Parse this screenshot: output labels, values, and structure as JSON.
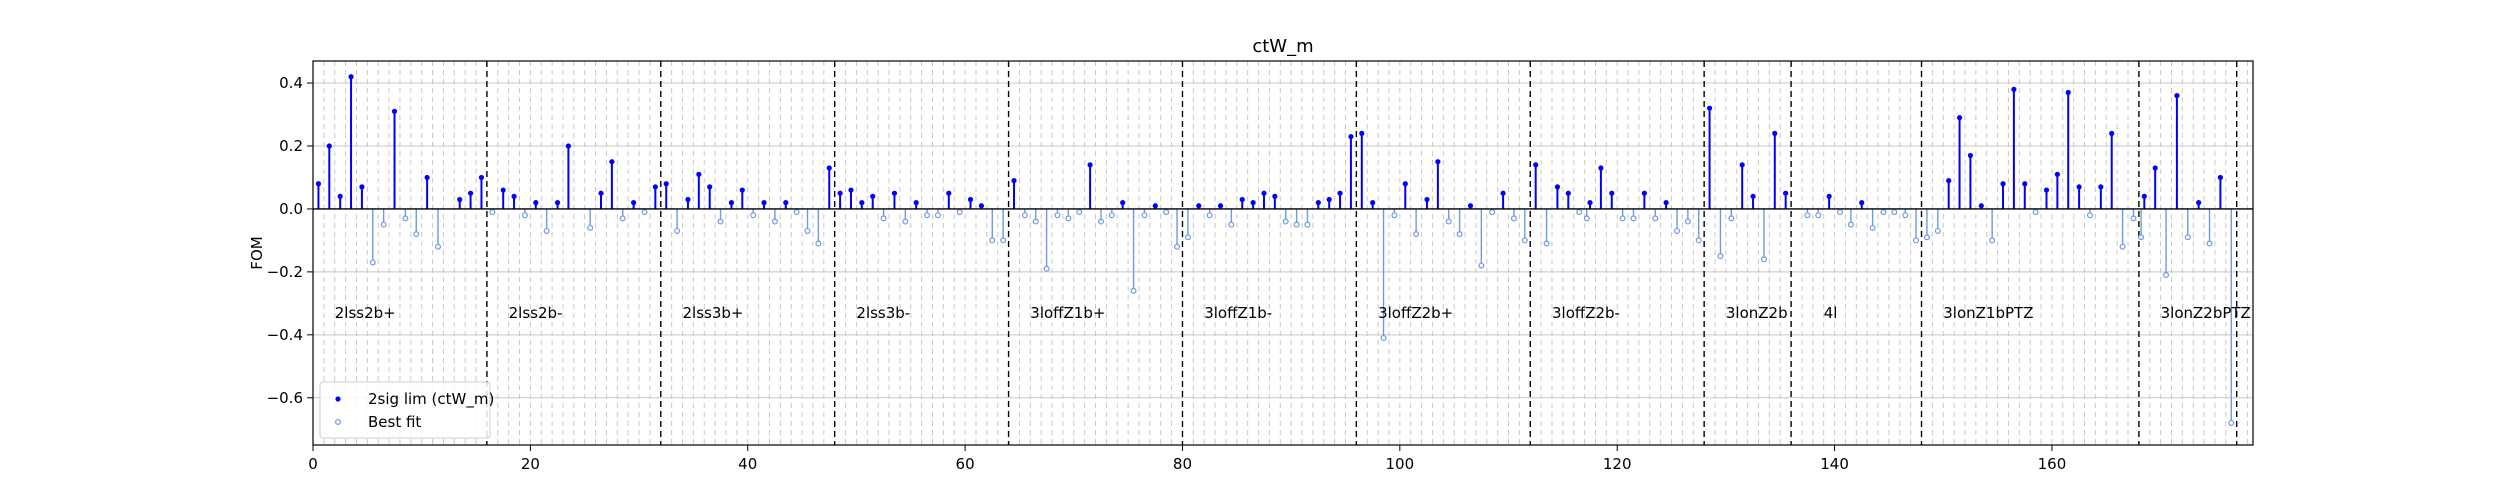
{
  "chart_data": {
    "type": "stem",
    "title": "ctW_m",
    "xlabel": "",
    "ylabel": "FOM",
    "xlim": [
      0,
      178.5
    ],
    "ylim": [
      -0.75,
      0.47
    ],
    "xticks": [
      0,
      20,
      40,
      60,
      80,
      100,
      120,
      140,
      160
    ],
    "yticks": [
      -0.6,
      -0.4,
      -0.2,
      0.0,
      0.2,
      0.4
    ],
    "ytick_labels": [
      "−0.6",
      "−0.4",
      "−0.2",
      "0.0",
      "0.2",
      "0.4"
    ],
    "grid": true,
    "legend_position": "lower-left",
    "colors": {
      "lim": "#0000ff",
      "best": "#6b9be0",
      "dashed": "#000000",
      "grid": "#c8c8c8"
    },
    "region_boundaries": [
      16,
      32,
      48,
      64,
      80,
      96,
      112,
      128,
      136,
      148,
      168,
      177
    ],
    "regions": [
      {
        "label": "2lss2b+",
        "x": 2
      },
      {
        "label": "2lss2b-",
        "x": 18
      },
      {
        "label": "2lss3b+",
        "x": 34
      },
      {
        "label": "2lss3b-",
        "x": 50
      },
      {
        "label": "3loffZ1b+",
        "x": 66
      },
      {
        "label": "3loffZ1b-",
        "x": 82
      },
      {
        "label": "3loffZ2b+",
        "x": 98
      },
      {
        "label": "3loffZ2b-",
        "x": 114
      },
      {
        "label": "3lonZ2b",
        "x": 130
      },
      {
        "label": "4l",
        "x": 139
      },
      {
        "label": "3lonZ1bPTZ",
        "x": 150
      },
      {
        "label": "3lonZ2bPTZ",
        "x": 170
      }
    ],
    "region_label_y": -0.33,
    "series": [
      {
        "name": "2sig lim (ctW_m)",
        "marker": "dot",
        "points": [
          [
            0.5,
            0.08
          ],
          [
            1.5,
            0.2
          ],
          [
            2.5,
            0.04
          ],
          [
            3.5,
            0.42
          ],
          [
            4.5,
            0.07
          ],
          [
            7.5,
            0.31
          ],
          [
            10.5,
            0.1
          ],
          [
            13.5,
            0.03
          ],
          [
            14.5,
            0.05
          ],
          [
            15.5,
            0.1
          ],
          [
            17.5,
            0.06
          ],
          [
            18.5,
            0.04
          ],
          [
            20.5,
            0.02
          ],
          [
            22.5,
            0.02
          ],
          [
            23.5,
            0.2
          ],
          [
            26.5,
            0.05
          ],
          [
            27.5,
            0.15
          ],
          [
            29.5,
            0.02
          ],
          [
            31.5,
            0.07
          ],
          [
            32.5,
            0.08
          ],
          [
            34.5,
            0.03
          ],
          [
            35.5,
            0.11
          ],
          [
            36.5,
            0.07
          ],
          [
            38.5,
            0.02
          ],
          [
            39.5,
            0.06
          ],
          [
            41.5,
            0.02
          ],
          [
            43.5,
            0.02
          ],
          [
            47.5,
            0.13
          ],
          [
            48.5,
            0.05
          ],
          [
            49.5,
            0.06
          ],
          [
            50.5,
            0.02
          ],
          [
            51.5,
            0.04
          ],
          [
            53.5,
            0.05
          ],
          [
            55.5,
            0.02
          ],
          [
            58.5,
            0.05
          ],
          [
            60.5,
            0.03
          ],
          [
            61.5,
            0.01
          ],
          [
            64.5,
            0.09
          ],
          [
            71.5,
            0.14
          ],
          [
            74.5,
            0.02
          ],
          [
            77.5,
            0.01
          ],
          [
            81.5,
            0.01
          ],
          [
            83.5,
            0.01
          ],
          [
            85.5,
            0.03
          ],
          [
            86.5,
            0.02
          ],
          [
            87.5,
            0.05
          ],
          [
            88.5,
            0.04
          ],
          [
            92.5,
            0.02
          ],
          [
            93.5,
            0.03
          ],
          [
            94.5,
            0.05
          ],
          [
            95.5,
            0.23
          ],
          [
            96.5,
            0.24
          ],
          [
            97.5,
            0.02
          ],
          [
            100.5,
            0.08
          ],
          [
            102.5,
            0.03
          ],
          [
            103.5,
            0.15
          ],
          [
            106.5,
            0.01
          ],
          [
            109.5,
            0.05
          ],
          [
            112.5,
            0.14
          ],
          [
            114.5,
            0.07
          ],
          [
            115.5,
            0.05
          ],
          [
            117.5,
            0.02
          ],
          [
            118.5,
            0.13
          ],
          [
            119.5,
            0.05
          ],
          [
            122.5,
            0.05
          ],
          [
            124.5,
            0.02
          ],
          [
            128.5,
            0.32
          ],
          [
            131.5,
            0.14
          ],
          [
            132.5,
            0.04
          ],
          [
            134.5,
            0.24
          ],
          [
            135.5,
            0.05
          ],
          [
            139.5,
            0.04
          ],
          [
            142.5,
            0.02
          ],
          [
            150.5,
            0.09
          ],
          [
            151.5,
            0.29
          ],
          [
            152.5,
            0.17
          ],
          [
            153.5,
            0.01
          ],
          [
            155.5,
            0.08
          ],
          [
            156.5,
            0.38
          ],
          [
            157.5,
            0.08
          ],
          [
            159.5,
            0.06
          ],
          [
            160.5,
            0.11
          ],
          [
            161.5,
            0.37
          ],
          [
            162.5,
            0.07
          ],
          [
            164.5,
            0.07
          ],
          [
            165.5,
            0.24
          ],
          [
            168.5,
            0.04
          ],
          [
            169.5,
            0.13
          ],
          [
            171.5,
            0.36
          ],
          [
            173.5,
            0.02
          ],
          [
            175.5,
            0.1
          ]
        ]
      },
      {
        "name": "Best fit",
        "marker": "circle",
        "points": [
          [
            5.5,
            -0.17
          ],
          [
            6.5,
            -0.05
          ],
          [
            8.5,
            -0.03
          ],
          [
            9.5,
            -0.08
          ],
          [
            11.5,
            -0.12
          ],
          [
            16.5,
            -0.01
          ],
          [
            19.5,
            -0.02
          ],
          [
            21.5,
            -0.07
          ],
          [
            25.5,
            -0.06
          ],
          [
            28.5,
            -0.03
          ],
          [
            30.5,
            -0.01
          ],
          [
            33.5,
            -0.07
          ],
          [
            37.5,
            -0.04
          ],
          [
            40.5,
            -0.02
          ],
          [
            42.5,
            -0.04
          ],
          [
            44.5,
            -0.01
          ],
          [
            45.5,
            -0.07
          ],
          [
            46.5,
            -0.11
          ],
          [
            52.5,
            -0.03
          ],
          [
            54.5,
            -0.04
          ],
          [
            56.5,
            -0.02
          ],
          [
            57.5,
            -0.02
          ],
          [
            59.5,
            -0.01
          ],
          [
            62.5,
            -0.1
          ],
          [
            63.5,
            -0.1
          ],
          [
            65.5,
            -0.02
          ],
          [
            66.5,
            -0.04
          ],
          [
            67.5,
            -0.19
          ],
          [
            68.5,
            -0.02
          ],
          [
            69.5,
            -0.03
          ],
          [
            70.5,
            -0.01
          ],
          [
            72.5,
            -0.04
          ],
          [
            73.5,
            -0.02
          ],
          [
            75.5,
            -0.26
          ],
          [
            76.5,
            -0.02
          ],
          [
            78.5,
            -0.01
          ],
          [
            79.5,
            -0.12
          ],
          [
            80.5,
            -0.09
          ],
          [
            82.5,
            -0.02
          ],
          [
            84.5,
            -0.05
          ],
          [
            89.5,
            -0.04
          ],
          [
            90.5,
            -0.05
          ],
          [
            91.5,
            -0.05
          ],
          [
            98.5,
            -0.41
          ],
          [
            99.5,
            -0.02
          ],
          [
            101.5,
            -0.08
          ],
          [
            104.5,
            -0.04
          ],
          [
            105.5,
            -0.08
          ],
          [
            107.5,
            -0.18
          ],
          [
            108.5,
            -0.01
          ],
          [
            110.5,
            -0.03
          ],
          [
            111.5,
            -0.1
          ],
          [
            113.5,
            -0.11
          ],
          [
            116.5,
            -0.01
          ],
          [
            117.2,
            -0.03
          ],
          [
            120.5,
            -0.03
          ],
          [
            121.5,
            -0.03
          ],
          [
            123.5,
            -0.03
          ],
          [
            125.5,
            -0.07
          ],
          [
            126.5,
            -0.04
          ],
          [
            127.5,
            -0.1
          ],
          [
            129.5,
            -0.15
          ],
          [
            130.5,
            -0.03
          ],
          [
            133.5,
            -0.16
          ],
          [
            137.5,
            -0.02
          ],
          [
            138.5,
            -0.02
          ],
          [
            140.5,
            -0.01
          ],
          [
            141.5,
            -0.05
          ],
          [
            143.5,
            -0.06
          ],
          [
            144.5,
            -0.01
          ],
          [
            145.5,
            -0.01
          ],
          [
            146.5,
            -0.02
          ],
          [
            147.5,
            -0.1
          ],
          [
            148.5,
            -0.09
          ],
          [
            149.5,
            -0.07
          ],
          [
            154.5,
            -0.1
          ],
          [
            158.5,
            -0.01
          ],
          [
            163.5,
            -0.02
          ],
          [
            166.5,
            -0.12
          ],
          [
            167.5,
            -0.03
          ],
          [
            168.2,
            -0.09
          ],
          [
            170.5,
            -0.21
          ],
          [
            172.5,
            -0.09
          ],
          [
            174.5,
            -0.11
          ],
          [
            176.5,
            -0.68
          ]
        ]
      }
    ]
  }
}
